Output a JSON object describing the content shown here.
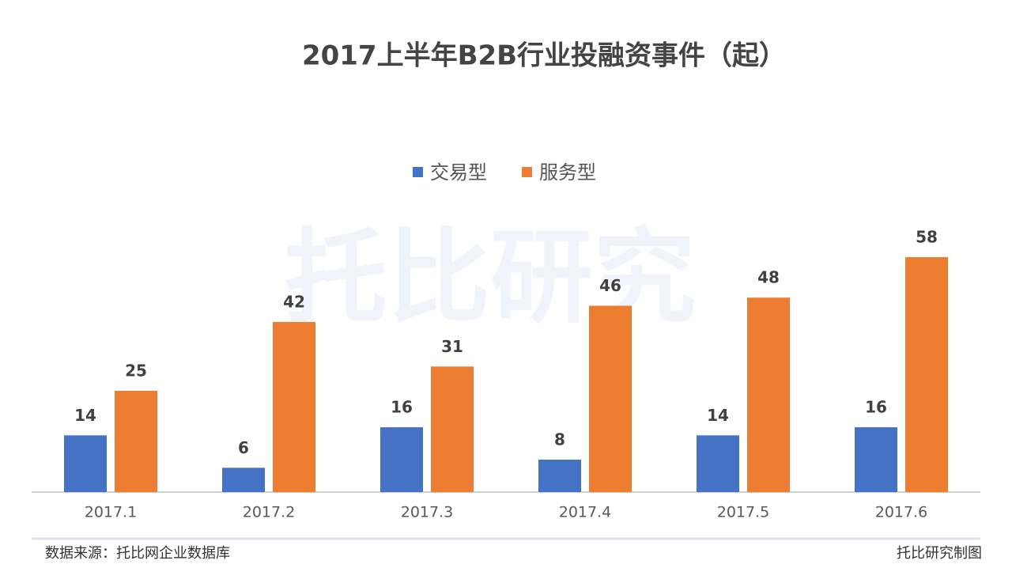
{
  "chart_data": {
    "type": "bar",
    "title": "2017上半年B2B行业投融资事件（起）",
    "categories": [
      "2017.1",
      "2017.2",
      "2017.3",
      "2017.4",
      "2017.5",
      "2017.6"
    ],
    "series": [
      {
        "name": "交易型",
        "color": "#4472c4",
        "values": [
          14,
          6,
          16,
          8,
          14,
          16
        ]
      },
      {
        "name": "服务型",
        "color": "#ed7d31",
        "values": [
          25,
          42,
          31,
          46,
          48,
          58
        ]
      }
    ],
    "ylim": [
      0,
      60
    ],
    "legend": "top",
    "source": "数据来源：托比网企业数据库",
    "watermark": "托比研究",
    "credit": "托比研究制图"
  }
}
